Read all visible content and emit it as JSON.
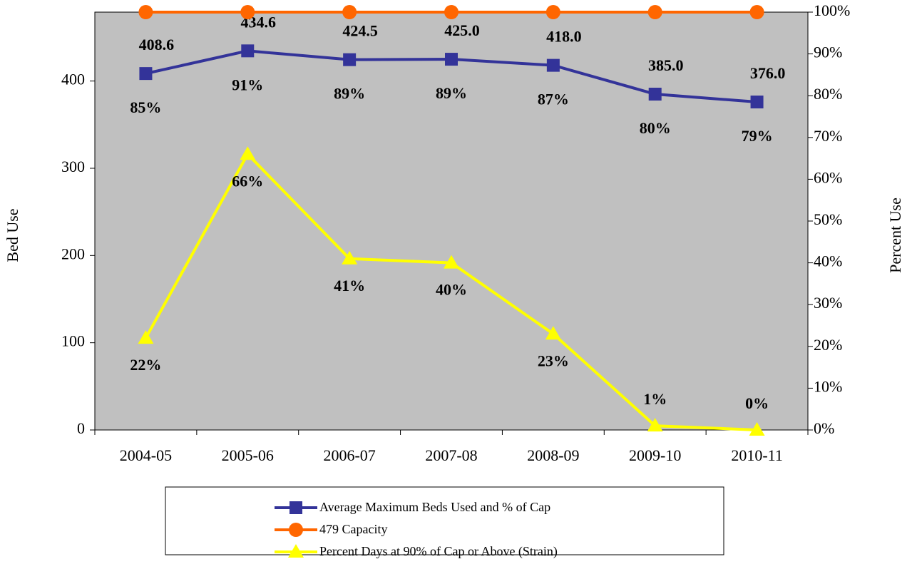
{
  "chart_data": {
    "type": "line",
    "categories": [
      "2004-05",
      "2005-06",
      "2006-07",
      "2007-08",
      "2008-09",
      "2009-10",
      "2010-11"
    ],
    "ylabel": "Bed Use",
    "y2label": "Percent Use",
    "ylim": [
      0,
      479
    ],
    "yticks": [
      0,
      100,
      200,
      300,
      400
    ],
    "y2lim": [
      0,
      100
    ],
    "y2ticks": [
      {
        "value": 0,
        "label": "0%"
      },
      {
        "value": 10,
        "label": "10%"
      },
      {
        "value": 20,
        "label": "20%"
      },
      {
        "value": 30,
        "label": "30%"
      },
      {
        "value": 40,
        "label": "40%"
      },
      {
        "value": 50,
        "label": "50%"
      },
      {
        "value": 60,
        "label": "60%"
      },
      {
        "value": 70,
        "label": "70%"
      },
      {
        "value": 80,
        "label": "80%"
      },
      {
        "value": 90,
        "label": "90%"
      },
      {
        "value": 100,
        "label": "100%"
      }
    ],
    "grid": false,
    "plot_background": "#c0c0c0",
    "series": [
      {
        "name": "Average Maximum Beds Used and % of Cap",
        "color": "#333399",
        "marker": "square",
        "axis": "y",
        "values": [
          408.6,
          434.6,
          424.5,
          425.0,
          418.0,
          385.0,
          376.0
        ],
        "value_labels": [
          "408.6",
          "434.6",
          "424.5",
          "425.0",
          "418.0",
          "385.0",
          "376.0"
        ],
        "capacity_pct_labels": [
          "85%",
          "91%",
          "89%",
          "89%",
          "87%",
          "80%",
          "79%"
        ]
      },
      {
        "name": "479 Capacity",
        "color": "#ff6600",
        "marker": "circle",
        "axis": "y",
        "values": [
          479,
          479,
          479,
          479,
          479,
          479,
          479
        ]
      },
      {
        "name": "Percent Days at 90% of Cap or Above (Strain)",
        "color": "#ffff00",
        "marker": "triangle",
        "axis": "y2",
        "values": [
          22,
          66,
          41,
          40,
          23,
          1,
          0
        ],
        "value_labels": [
          "22%",
          "66%",
          "41%",
          "40%",
          "23%",
          "1%",
          "0%"
        ]
      }
    ]
  }
}
